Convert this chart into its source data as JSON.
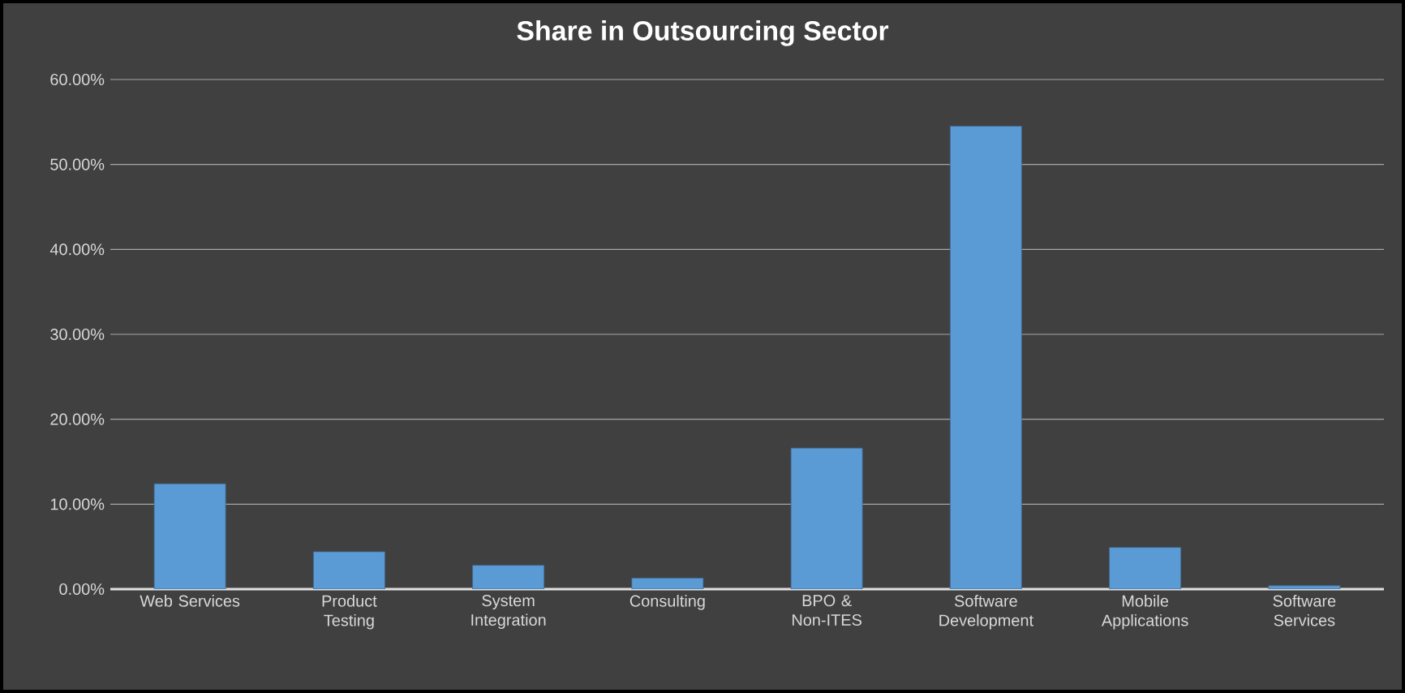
{
  "chart_data": {
    "type": "bar",
    "title": "Share in Outsourcing Sector",
    "categories": [
      "Web Services",
      "Product Testing",
      "System Integration",
      "Consulting",
      "BPO & Non-ITES",
      "Software Development",
      "Mobile Applications",
      "Software Services"
    ],
    "values": [
      12.4,
      4.4,
      2.8,
      1.3,
      16.6,
      54.5,
      4.9,
      0.4
    ],
    "color": "#5b9bd5",
    "ylim": [
      0,
      60
    ],
    "yticks": [
      {
        "value": 0,
        "label": "0.00%"
      },
      {
        "value": 10,
        "label": "10.00%"
      },
      {
        "value": 20,
        "label": "20.00%"
      },
      {
        "value": 30,
        "label": "30.00%"
      },
      {
        "value": 40,
        "label": "40.00%"
      },
      {
        "value": 50,
        "label": "50.00%"
      },
      {
        "value": 60,
        "label": "60.00%"
      }
    ],
    "grid": "y"
  }
}
